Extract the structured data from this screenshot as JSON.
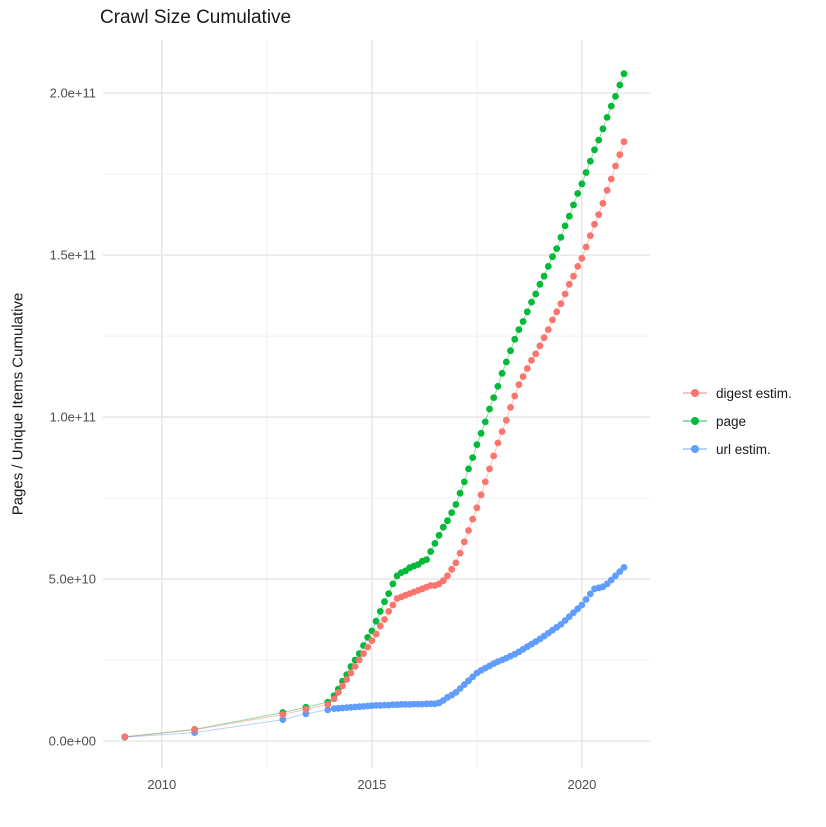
{
  "title": "Crawl Size Cumulative",
  "y_axis_title": "Pages / Unique Items Cumulative",
  "colors": {
    "digest": "#F8766D",
    "page": "#00BA38",
    "url": "#619CFF",
    "grid_major": "#E4E4E4",
    "grid_minor": "#F0F0F0",
    "axis_text": "#4D4D4D",
    "text": "#1A1A1A",
    "background": "#FFFFFF"
  },
  "legend": {
    "items": [
      {
        "label": "digest estim.",
        "color": "#F8766D"
      },
      {
        "label": "page",
        "color": "#00BA38"
      },
      {
        "label": "url estim.",
        "color": "#619CFF"
      }
    ]
  },
  "chart_data": {
    "type": "scatter",
    "title": "Crawl Size Cumulative",
    "xlabel": "",
    "ylabel": "Pages / Unique Items Cumulative",
    "value_unit": "items, stored as billions (value x 1e9)",
    "xlim": [
      2008.6,
      2021.62
    ],
    "ylim_e9": [
      -8.33,
      216.4
    ],
    "grid": true,
    "legend_position": "right",
    "x_ticks": [
      {
        "label": "2010",
        "v": 2010
      },
      {
        "label": "2015",
        "v": 2015
      },
      {
        "label": "2020",
        "v": 2020
      }
    ],
    "x_minor": [
      2012.5,
      2017.5
    ],
    "y_ticks": [
      {
        "label": "0.0e+00",
        "v": 0
      },
      {
        "label": "5.0e+10",
        "v": 50
      },
      {
        "label": "1.0e+11",
        "v": 100
      },
      {
        "label": "1.5e+11",
        "v": 150
      },
      {
        "label": "2.0e+11",
        "v": 200
      }
    ],
    "y_minor_e9": [
      25,
      75,
      125,
      175
    ],
    "series": [
      {
        "name": "digest estim.",
        "color": "#F8766D",
        "points": [
          [
            2009.12,
            1.3
          ],
          [
            2010.78,
            3.5
          ],
          [
            2012.88,
            8.2
          ],
          [
            2013.43,
            9.8
          ],
          [
            2013.95,
            11.3
          ],
          [
            2014.1,
            13
          ],
          [
            2014.2,
            15
          ],
          [
            2014.3,
            17
          ],
          [
            2014.4,
            19
          ],
          [
            2014.5,
            21
          ],
          [
            2014.6,
            23
          ],
          [
            2014.7,
            25
          ],
          [
            2014.8,
            27
          ],
          [
            2014.9,
            29
          ],
          [
            2015.0,
            31
          ],
          [
            2015.1,
            33
          ],
          [
            2015.2,
            35.5
          ],
          [
            2015.3,
            37.5
          ],
          [
            2015.4,
            40
          ],
          [
            2015.5,
            42
          ],
          [
            2015.6,
            44
          ],
          [
            2015.7,
            44.5
          ],
          [
            2015.8,
            45
          ],
          [
            2015.9,
            45.5
          ],
          [
            2016.0,
            46
          ],
          [
            2016.1,
            46.5
          ],
          [
            2016.2,
            47
          ],
          [
            2016.3,
            47.5
          ],
          [
            2016.4,
            48
          ],
          [
            2016.5,
            48
          ],
          [
            2016.6,
            48.5
          ],
          [
            2016.7,
            49.5
          ],
          [
            2016.8,
            51
          ],
          [
            2016.9,
            53
          ],
          [
            2017.0,
            55
          ],
          [
            2017.1,
            58
          ],
          [
            2017.2,
            61.5
          ],
          [
            2017.3,
            65
          ],
          [
            2017.4,
            68.5
          ],
          [
            2017.5,
            72
          ],
          [
            2017.6,
            76
          ],
          [
            2017.7,
            80
          ],
          [
            2017.8,
            84
          ],
          [
            2017.9,
            88
          ],
          [
            2018.0,
            92
          ],
          [
            2018.1,
            95.5
          ],
          [
            2018.2,
            99
          ],
          [
            2018.3,
            103
          ],
          [
            2018.4,
            106.5
          ],
          [
            2018.5,
            110
          ],
          [
            2018.6,
            112.5
          ],
          [
            2018.7,
            115
          ],
          [
            2018.8,
            117.5
          ],
          [
            2018.9,
            119.5
          ],
          [
            2019.0,
            122
          ],
          [
            2019.1,
            124.5
          ],
          [
            2019.2,
            127
          ],
          [
            2019.3,
            130
          ],
          [
            2019.4,
            132.5
          ],
          [
            2019.5,
            135
          ],
          [
            2019.6,
            138
          ],
          [
            2019.7,
            141
          ],
          [
            2019.8,
            143.5
          ],
          [
            2019.9,
            146.5
          ],
          [
            2020.0,
            149
          ],
          [
            2020.1,
            152.5
          ],
          [
            2020.2,
            156
          ],
          [
            2020.3,
            159.5
          ],
          [
            2020.4,
            162.5
          ],
          [
            2020.5,
            166
          ],
          [
            2020.6,
            170
          ],
          [
            2020.7,
            173.5
          ],
          [
            2020.8,
            177.5
          ],
          [
            2020.9,
            181
          ],
          [
            2021.0,
            185
          ]
        ]
      },
      {
        "name": "page",
        "color": "#00BA38",
        "points": [
          [
            2009.12,
            1.3
          ],
          [
            2010.78,
            3.6
          ],
          [
            2012.88,
            8.8
          ],
          [
            2013.43,
            10.4
          ],
          [
            2013.95,
            12
          ],
          [
            2014.1,
            14
          ],
          [
            2014.2,
            16
          ],
          [
            2014.3,
            18.5
          ],
          [
            2014.4,
            20.5
          ],
          [
            2014.5,
            23
          ],
          [
            2014.6,
            25
          ],
          [
            2014.7,
            27
          ],
          [
            2014.8,
            29.5
          ],
          [
            2014.9,
            32
          ],
          [
            2015.0,
            34
          ],
          [
            2015.1,
            37
          ],
          [
            2015.2,
            40
          ],
          [
            2015.3,
            43
          ],
          [
            2015.4,
            45.5
          ],
          [
            2015.5,
            48.5
          ],
          [
            2015.6,
            51
          ],
          [
            2015.7,
            52
          ],
          [
            2015.8,
            52.5
          ],
          [
            2015.9,
            53.5
          ],
          [
            2016.0,
            54
          ],
          [
            2016.1,
            54.5
          ],
          [
            2016.2,
            55.5
          ],
          [
            2016.3,
            56
          ],
          [
            2016.4,
            58.5
          ],
          [
            2016.5,
            61
          ],
          [
            2016.6,
            63.5
          ],
          [
            2016.7,
            66
          ],
          [
            2016.8,
            68
          ],
          [
            2016.9,
            70.5
          ],
          [
            2017.0,
            73
          ],
          [
            2017.1,
            76.5
          ],
          [
            2017.2,
            80
          ],
          [
            2017.3,
            84
          ],
          [
            2017.4,
            87.5
          ],
          [
            2017.5,
            91.5
          ],
          [
            2017.6,
            95
          ],
          [
            2017.7,
            98.5
          ],
          [
            2017.8,
            102.5
          ],
          [
            2017.9,
            106
          ],
          [
            2018.0,
            109.5
          ],
          [
            2018.1,
            113.5
          ],
          [
            2018.2,
            117
          ],
          [
            2018.3,
            120.5
          ],
          [
            2018.4,
            124
          ],
          [
            2018.5,
            127
          ],
          [
            2018.6,
            129.5
          ],
          [
            2018.7,
            132.5
          ],
          [
            2018.8,
            135.5
          ],
          [
            2018.9,
            138
          ],
          [
            2019.0,
            141
          ],
          [
            2019.1,
            143.5
          ],
          [
            2019.2,
            146.5
          ],
          [
            2019.3,
            149.5
          ],
          [
            2019.4,
            152
          ],
          [
            2019.5,
            155.5
          ],
          [
            2019.6,
            159
          ],
          [
            2019.7,
            162
          ],
          [
            2019.8,
            165.5
          ],
          [
            2019.9,
            169
          ],
          [
            2020.0,
            172
          ],
          [
            2020.1,
            175.5
          ],
          [
            2020.2,
            179
          ],
          [
            2020.3,
            182.5
          ],
          [
            2020.4,
            185.5
          ],
          [
            2020.5,
            189
          ],
          [
            2020.6,
            192.5
          ],
          [
            2020.7,
            196
          ],
          [
            2020.8,
            199
          ],
          [
            2020.9,
            202.5
          ],
          [
            2021.0,
            206
          ]
        ]
      },
      {
        "name": "url estim.",
        "color": "#619CFF",
        "points": [
          [
            2009.12,
            1.2
          ],
          [
            2010.78,
            2.6
          ],
          [
            2012.88,
            6.6
          ],
          [
            2013.43,
            8.4
          ],
          [
            2013.95,
            9.6
          ],
          [
            2014.1,
            10
          ],
          [
            2014.2,
            10.1
          ],
          [
            2014.3,
            10.2
          ],
          [
            2014.4,
            10.3
          ],
          [
            2014.5,
            10.4
          ],
          [
            2014.6,
            10.5
          ],
          [
            2014.7,
            10.6
          ],
          [
            2014.8,
            10.7
          ],
          [
            2014.9,
            10.8
          ],
          [
            2015.0,
            10.9
          ],
          [
            2015.1,
            11
          ],
          [
            2015.2,
            11
          ],
          [
            2015.3,
            11.1
          ],
          [
            2015.4,
            11.1
          ],
          [
            2015.5,
            11.2
          ],
          [
            2015.6,
            11.2
          ],
          [
            2015.7,
            11.3
          ],
          [
            2015.8,
            11.3
          ],
          [
            2015.9,
            11.3
          ],
          [
            2016.0,
            11.4
          ],
          [
            2016.1,
            11.4
          ],
          [
            2016.2,
            11.4
          ],
          [
            2016.3,
            11.5
          ],
          [
            2016.4,
            11.5
          ],
          [
            2016.5,
            11.5
          ],
          [
            2016.6,
            11.8
          ],
          [
            2016.7,
            12.5
          ],
          [
            2016.8,
            13.5
          ],
          [
            2016.9,
            14.2
          ],
          [
            2017.0,
            15
          ],
          [
            2017.1,
            16.2
          ],
          [
            2017.2,
            17.4
          ],
          [
            2017.3,
            18.6
          ],
          [
            2017.4,
            19.8
          ],
          [
            2017.5,
            21
          ],
          [
            2017.6,
            21.8
          ],
          [
            2017.7,
            22.5
          ],
          [
            2017.8,
            23.2
          ],
          [
            2017.9,
            23.9
          ],
          [
            2018.0,
            24.5
          ],
          [
            2018.1,
            25
          ],
          [
            2018.2,
            25.6
          ],
          [
            2018.3,
            26.2
          ],
          [
            2018.4,
            26.8
          ],
          [
            2018.5,
            27.5
          ],
          [
            2018.6,
            28.3
          ],
          [
            2018.7,
            29.1
          ],
          [
            2018.8,
            29.9
          ],
          [
            2018.9,
            30.7
          ],
          [
            2019.0,
            31.5
          ],
          [
            2019.1,
            32.4
          ],
          [
            2019.2,
            33.3
          ],
          [
            2019.3,
            34.2
          ],
          [
            2019.4,
            35.1
          ],
          [
            2019.5,
            36
          ],
          [
            2019.6,
            37.2
          ],
          [
            2019.7,
            38.4
          ],
          [
            2019.8,
            39.6
          ],
          [
            2019.9,
            40.8
          ],
          [
            2020.0,
            42
          ],
          [
            2020.1,
            43.7
          ],
          [
            2020.2,
            45.4
          ],
          [
            2020.3,
            47
          ],
          [
            2020.4,
            47.3
          ],
          [
            2020.5,
            47.6
          ],
          [
            2020.6,
            48.5
          ],
          [
            2020.7,
            49.7
          ],
          [
            2020.8,
            51
          ],
          [
            2020.9,
            52.3
          ],
          [
            2021.0,
            53.6
          ]
        ]
      }
    ]
  }
}
